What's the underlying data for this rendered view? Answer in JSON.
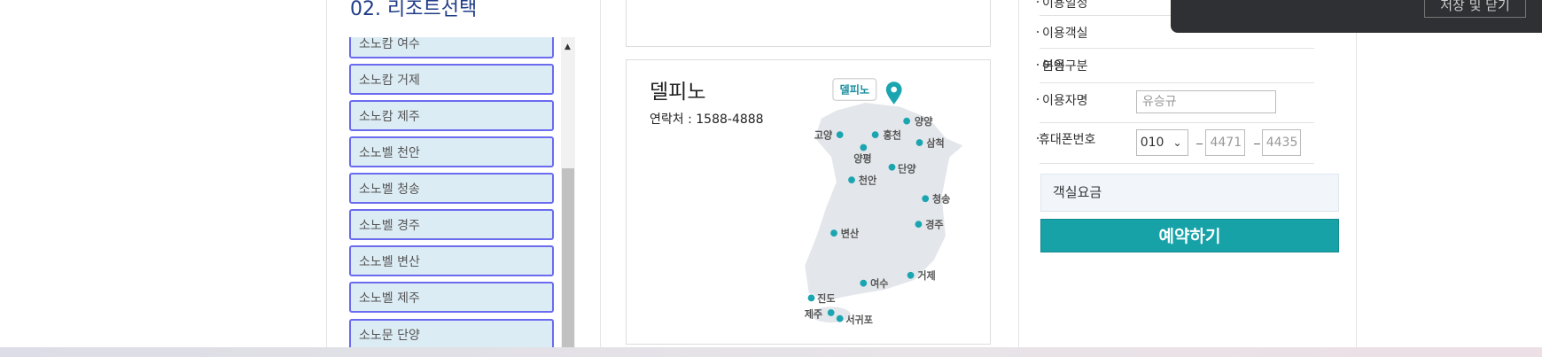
{
  "left": {
    "title": "02. 리조트선택",
    "resorts": [
      "소노캄 여수",
      "소노캄 거제",
      "소노캄 제주",
      "소노벨 천안",
      "소노벨 청송",
      "소노벨 경주",
      "소노벨 변산",
      "소노벨 제주",
      "소노문 단양"
    ]
  },
  "detail": {
    "name": "델피노",
    "contact": "연락처 : 1588-4888",
    "map_tag": "델피노",
    "map_labels": [
      "양양",
      "고양",
      "홍천",
      "삼척",
      "양평",
      "단양",
      "천안",
      "청송",
      "경주",
      "변산",
      "거제",
      "여수",
      "진도",
      "제주",
      "서귀포"
    ]
  },
  "form": {
    "rows": [
      {
        "label": "이용일정"
      },
      {
        "label": "이용객실"
      },
      {
        "label": "이용구분",
        "value": "본인"
      },
      {
        "label": "이용자명",
        "input": "유승규"
      },
      {
        "label": "휴대폰번호",
        "phone": [
          "010",
          "4471",
          "4435"
        ]
      }
    ],
    "fee_label": "객실요금",
    "reserve": "예약하기"
  },
  "popup": {
    "button": "저장 및 닫기"
  }
}
